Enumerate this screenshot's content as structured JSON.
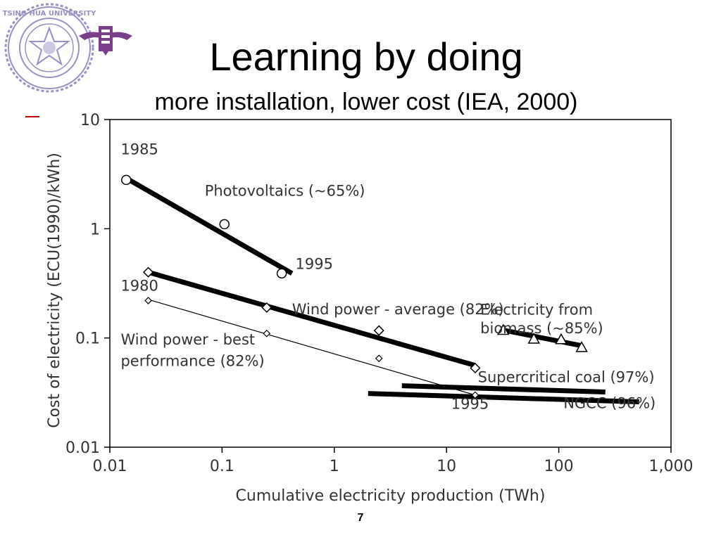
{
  "slide": {
    "title": "Learning by doing",
    "subtitle": "more installation, lower cost (IEA, 2000)",
    "page_number": "7"
  },
  "logo": {
    "icon": "university-seal-icon",
    "ring_text": "TSING HUA UNIVERSITY",
    "color": "#9b8fc6",
    "emblem_color": "#7a3e8a"
  },
  "chart_data": {
    "type": "line",
    "xscale": "log",
    "yscale": "log",
    "xlim": [
      0.01,
      1000
    ],
    "ylim": [
      0.01,
      10
    ],
    "xlabel": "Cumulative electricity production (TWh)",
    "ylabel": "Cost of electricity (ECU(1990)/kWh)",
    "xticks": [
      0.01,
      0.1,
      1,
      10,
      100,
      1000
    ],
    "xtick_labels": [
      "0.01",
      "0.1",
      "1",
      "10",
      "100",
      "1,000"
    ],
    "yticks": [
      0.01,
      0.1,
      1,
      10
    ],
    "ytick_labels": [
      "0.01",
      "0.1",
      "1",
      "10"
    ],
    "grid": false,
    "series": [
      {
        "name": "Photovoltaics (~65%)",
        "marker": "circle",
        "line": "thick",
        "points": [
          [
            0.014,
            2.8
          ],
          [
            0.105,
            1.1
          ],
          [
            0.34,
            0.39
          ]
        ],
        "trend": [
          [
            0.014,
            2.9
          ],
          [
            0.42,
            0.39
          ]
        ]
      },
      {
        "name": "Wind power - average (82%)",
        "marker": "diamond",
        "line": "thick",
        "points": [
          [
            0.022,
            0.4
          ],
          [
            0.25,
            0.19
          ],
          [
            2.5,
            0.117
          ],
          [
            18,
            0.053
          ]
        ],
        "trend": [
          [
            0.022,
            0.4
          ],
          [
            18,
            0.056
          ]
        ]
      },
      {
        "name": "Wind power - best performance (82%)",
        "marker": "diamond-small",
        "line": "thin",
        "points": [
          [
            0.022,
            0.22
          ],
          [
            0.25,
            0.11
          ],
          [
            2.5,
            0.065
          ],
          [
            18,
            0.03
          ]
        ],
        "trend": [
          [
            0.022,
            0.225
          ],
          [
            18,
            0.03
          ]
        ]
      },
      {
        "name": "Electricity from biomass (~85%)",
        "marker": "triangle",
        "line": "thick",
        "points": [
          [
            32,
            0.118
          ],
          [
            60,
            0.098
          ],
          [
            105,
            0.097
          ],
          [
            160,
            0.082
          ]
        ],
        "trend": [
          [
            32,
            0.118
          ],
          [
            160,
            0.085
          ]
        ]
      },
      {
        "name": "Supercritical coal (97%)",
        "marker": "none",
        "line": "thick",
        "points": [],
        "trend": [
          [
            4,
            0.0365
          ],
          [
            260,
            0.032
          ]
        ]
      },
      {
        "name": "NGCC (96%)",
        "marker": "none",
        "line": "thick",
        "points": [],
        "trend": [
          [
            2,
            0.031
          ],
          [
            520,
            0.026
          ]
        ]
      }
    ],
    "annotations": [
      {
        "text": "1985",
        "x": 0.0125,
        "y": 4.8
      },
      {
        "text": "1995",
        "x": 0.45,
        "y": 0.43
      },
      {
        "text": "1980",
        "x": 0.0125,
        "y": 0.27
      },
      {
        "text": "1995",
        "x": 11,
        "y": 0.0225
      },
      {
        "text": "Photovoltaics (~65%)",
        "x": 0.07,
        "y": 2.0
      },
      {
        "text": "Wind power - average (82%)",
        "x": 0.42,
        "y": 0.165
      },
      {
        "text": "Wind power - best",
        "x": 0.0125,
        "y": 0.087
      },
      {
        "text": "performance (82%)",
        "x": 0.0125,
        "y": 0.0555
      },
      {
        "text": "Electricity from",
        "x": 20,
        "y": 0.164
      },
      {
        "text": "biomass (~85%)",
        "x": 20,
        "y": 0.11
      },
      {
        "text": "Supercritical coal (97%)",
        "x": 19,
        "y": 0.0395
      },
      {
        "text": "NGCC (96%)",
        "x": 110,
        "y": 0.0228
      }
    ]
  }
}
